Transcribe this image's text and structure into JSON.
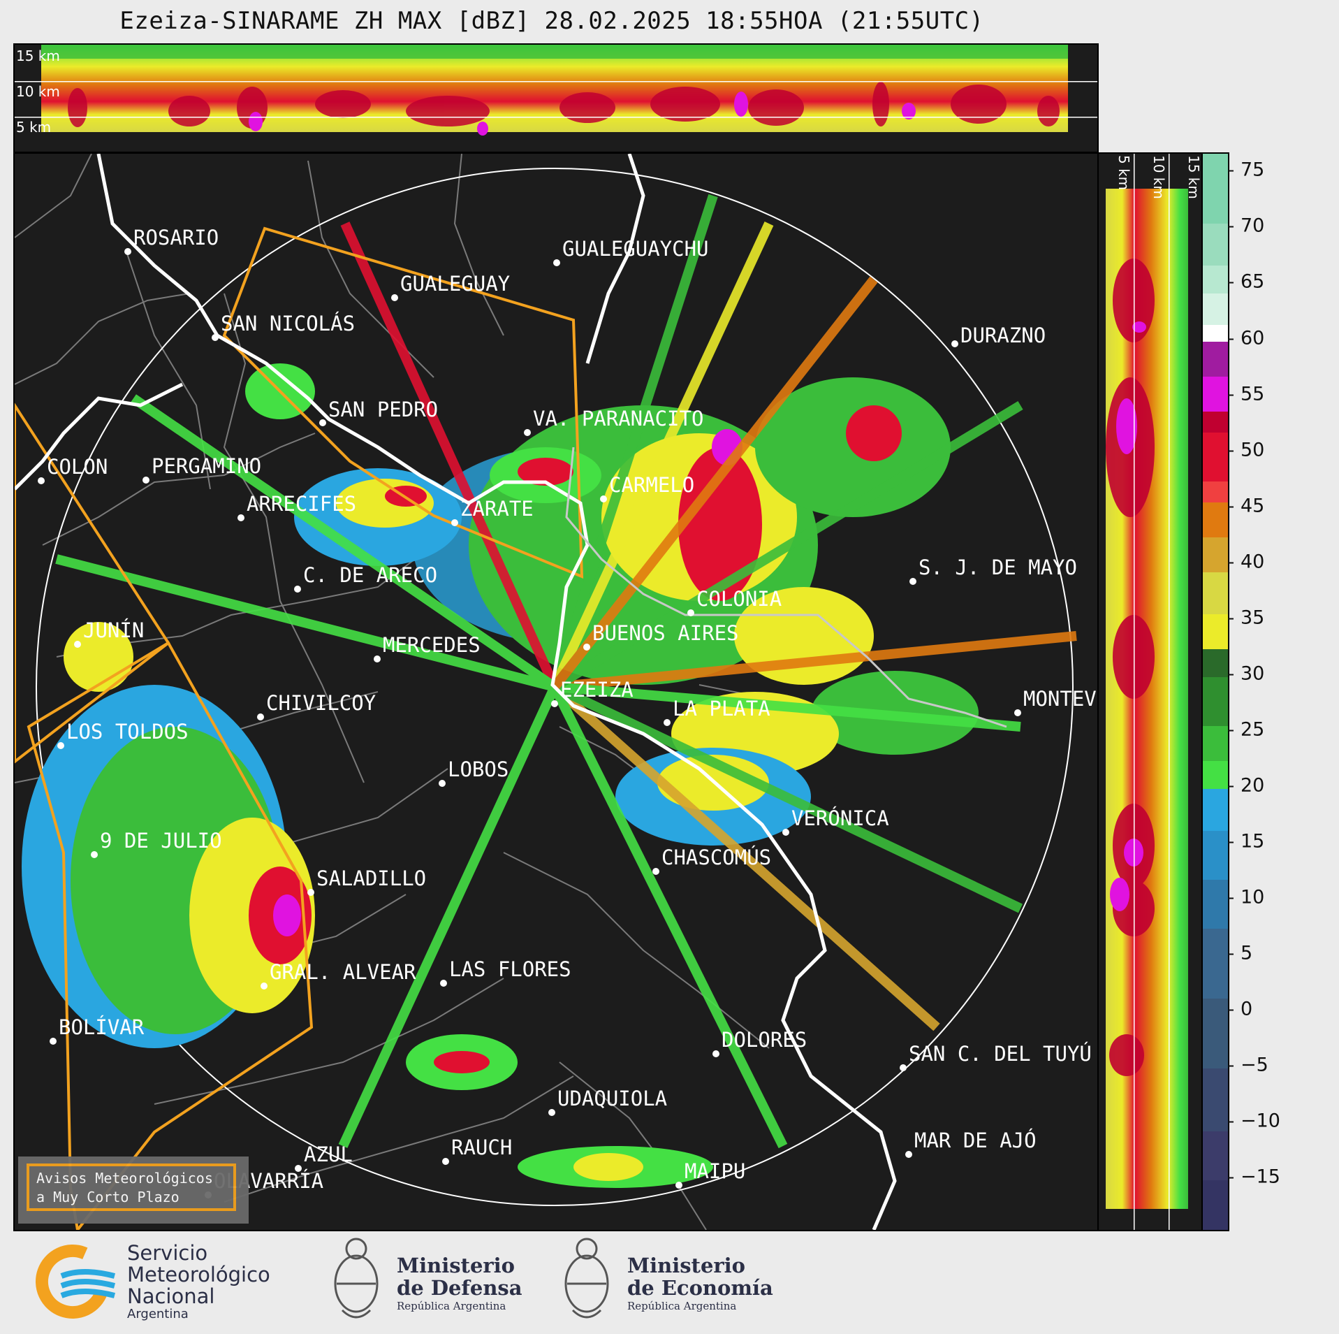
{
  "title": "Ezeiza-SINARAME ZH MAX [dBZ] 28.02.2025 18:55HOA (21:55UTC)",
  "height_labels": [
    "15 km",
    "10 km",
    "5 km"
  ],
  "colorbar": {
    "unit": "dBZ",
    "ticks": [
      "75",
      "70",
      "65",
      "60",
      "55",
      "50",
      "45",
      "40",
      "35",
      "30",
      "25",
      "20",
      "15",
      "10",
      "5",
      "0",
      "−5",
      "−10",
      "−15"
    ],
    "colors": {
      "c70": "#7fd4ae",
      "c65": "#b7e8d0",
      "c60": "#ffffff",
      "c55": "#a01ca0",
      "c52": "#e013e0",
      "c50": "#c00030",
      "c45": "#e01030",
      "c42": "#f04040",
      "c40": "#e07a10",
      "c37": "#d6a52e",
      "c35": "#d8d843",
      "c32": "#ebeb2a",
      "c30": "#2a6a2a",
      "c25": "#2f8f2f",
      "c22": "#3bbd3b",
      "c20": "#44e044",
      "c17": "#2aa6e0",
      "c15": "#2a90c8",
      "c10": "#2f79aa",
      "c5": "#3a6890",
      "c0": "#3a5a7a",
      "cm5": "#3a4a70",
      "cm10": "#3c3c6a",
      "cm15": "#343463"
    }
  },
  "cities": [
    {
      "name": "ROSARIO"
    },
    {
      "name": "GUALEGUAYCHU"
    },
    {
      "name": "GUALEGUAY"
    },
    {
      "name": "SAN NICOLÁS"
    },
    {
      "name": "DURAZNO"
    },
    {
      "name": "SAN PEDRO"
    },
    {
      "name": "VA. PARANACITO"
    },
    {
      "name": "COLON"
    },
    {
      "name": "PERGAMINO"
    },
    {
      "name": "CARMELO"
    },
    {
      "name": "ARRECIFES"
    },
    {
      "name": "ZÁRATE"
    },
    {
      "name": "S. J. DE MAYO"
    },
    {
      "name": "C. DE ARECO"
    },
    {
      "name": "COLONIA"
    },
    {
      "name": "JUNÍN"
    },
    {
      "name": "BUENOS AIRES"
    },
    {
      "name": "MERCEDES"
    },
    {
      "name": "EZEIZA"
    },
    {
      "name": "MONTEV"
    },
    {
      "name": "CHIVILCOY"
    },
    {
      "name": "LA PLATA"
    },
    {
      "name": "LOS TOLDOS"
    },
    {
      "name": "LOBOS"
    },
    {
      "name": "VERÓNICA"
    },
    {
      "name": "9 DE JULIO"
    },
    {
      "name": "CHASCOMÚS"
    },
    {
      "name": "SALADILLO"
    },
    {
      "name": "GRAL. ALVEAR"
    },
    {
      "name": "LAS FLORES"
    },
    {
      "name": "BOLÍVAR"
    },
    {
      "name": "DOLORES"
    },
    {
      "name": "SAN C. DEL TUYÚ"
    },
    {
      "name": "UDAQUIOLA"
    },
    {
      "name": "MAR DE AJÓ"
    },
    {
      "name": "RAUCH"
    },
    {
      "name": "AZUL"
    },
    {
      "name": "OLAVARRÍA"
    },
    {
      "name": "MAIPU"
    }
  ],
  "warning_box": {
    "line1": "Avisos Meteorológicos",
    "line2": "a Muy Corto Plazo"
  },
  "logos": {
    "smn": [
      "Servicio",
      "Meteorológico",
      "Nacional",
      "Argentina"
    ],
    "defensa": [
      "Ministerio",
      "de Defensa",
      "República Argentina"
    ],
    "economia": [
      "Ministerio",
      "de Economía",
      "República Argentina"
    ]
  }
}
